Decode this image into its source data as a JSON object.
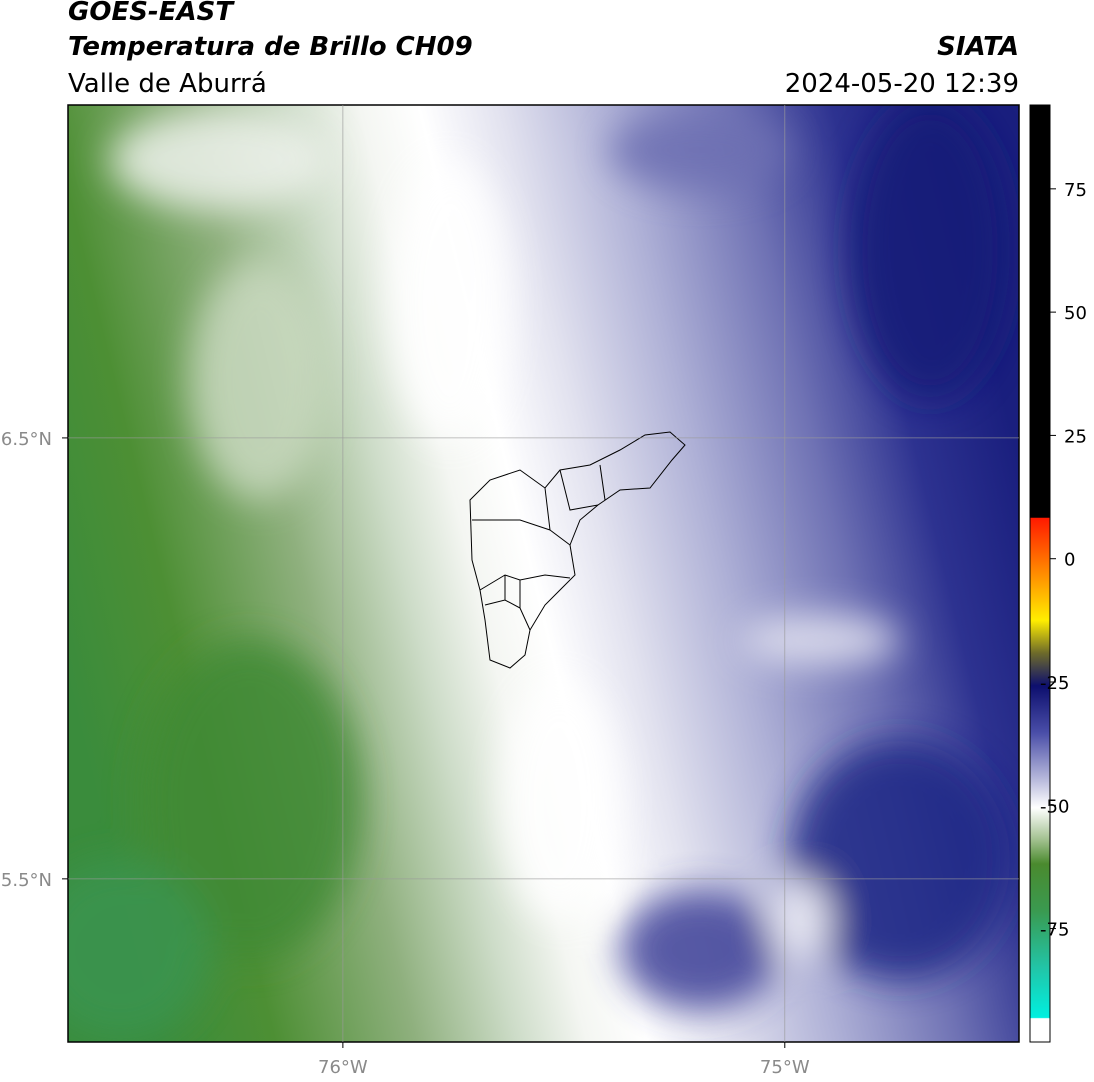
{
  "header": {
    "title": "GOES-EAST",
    "subtitle": "Temperatura de Brillo CH09",
    "region": "Valle de Aburrá",
    "source": "SIATA",
    "datetime": "2024-05-20 12:39"
  },
  "map": {
    "xlim": [
      -76.622,
      -74.47
    ],
    "ylim": [
      5.13,
      7.255
    ],
    "xticks": [
      {
        "value": -76,
        "label": "76°W"
      },
      {
        "value": -75,
        "label": "75°W"
      }
    ],
    "yticks": [
      {
        "value": 6.5,
        "label": "6.5°N"
      },
      {
        "value": 5.5,
        "label": "5.5°N"
      }
    ]
  },
  "colorbar": {
    "range": [
      -98,
      92
    ],
    "ticks": [
      75,
      50,
      25,
      0,
      -25,
      -50,
      -75
    ]
  }
}
